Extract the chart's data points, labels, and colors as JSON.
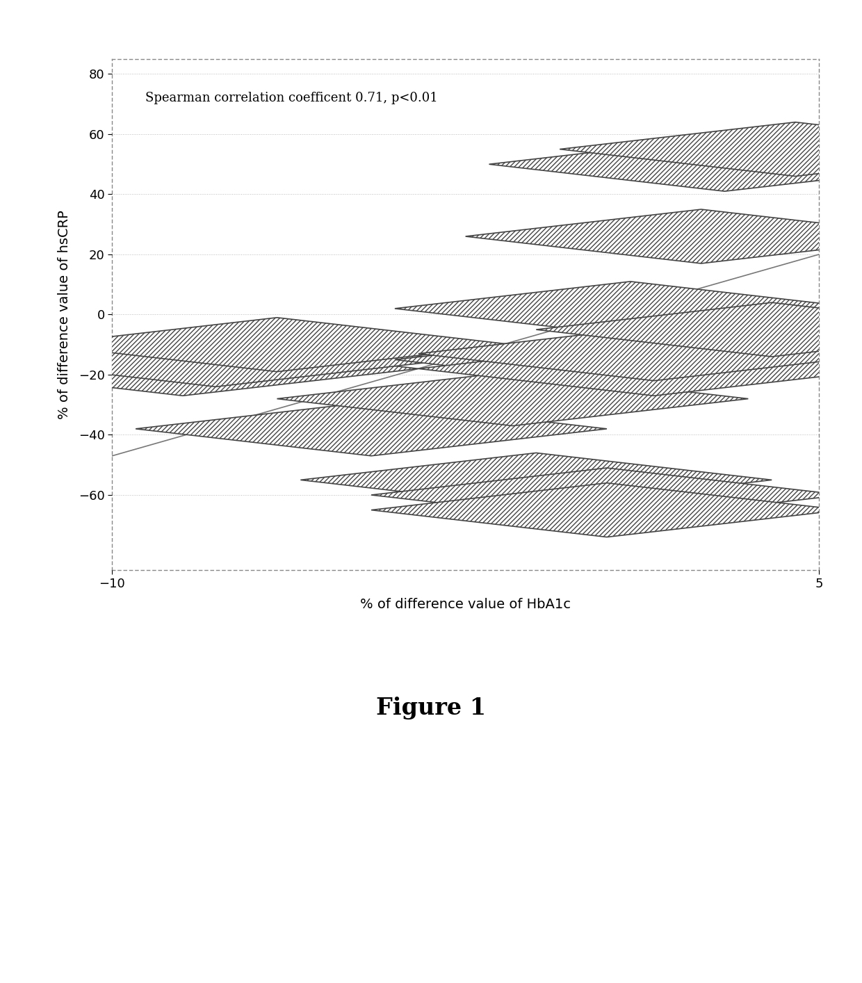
{
  "x_data": [
    -8.5,
    -7.8,
    -6.5,
    -4.5,
    -1.5,
    -1.0,
    0.5,
    0.5,
    1.0,
    1.0,
    1.5,
    1.5,
    2.5,
    3.0,
    4.0,
    4.5
  ],
  "y_data": [
    -18,
    -15,
    -10,
    -38,
    -28,
    -55,
    -60,
    -65,
    2,
    -15,
    -18,
    -13,
    26,
    50,
    -5,
    55
  ],
  "trendline_x": [
    -10,
    5
  ],
  "trendline_y": [
    -47,
    20
  ],
  "xlabel": "% of difference value of HbA1c",
  "ylabel": "% of difference value of hsCRP",
  "annotation": "Spearman correlation coefficent 0.71, p<0.01",
  "xlim": [
    -10,
    5
  ],
  "ylim": [
    -80,
    80
  ],
  "yticks": [
    -60,
    -40,
    -20,
    0,
    20,
    40,
    60,
    80
  ],
  "xticks": [
    -10,
    5
  ],
  "figure_label": "Figure 1",
  "marker_color": "#333333",
  "trendline_color": "#777777",
  "grid_color": "#bbbbbb",
  "bg_color": "#ffffff",
  "axis_label_fontsize": 14,
  "annotation_fontsize": 13,
  "tick_fontsize": 13,
  "figure_label_fontsize": 24
}
